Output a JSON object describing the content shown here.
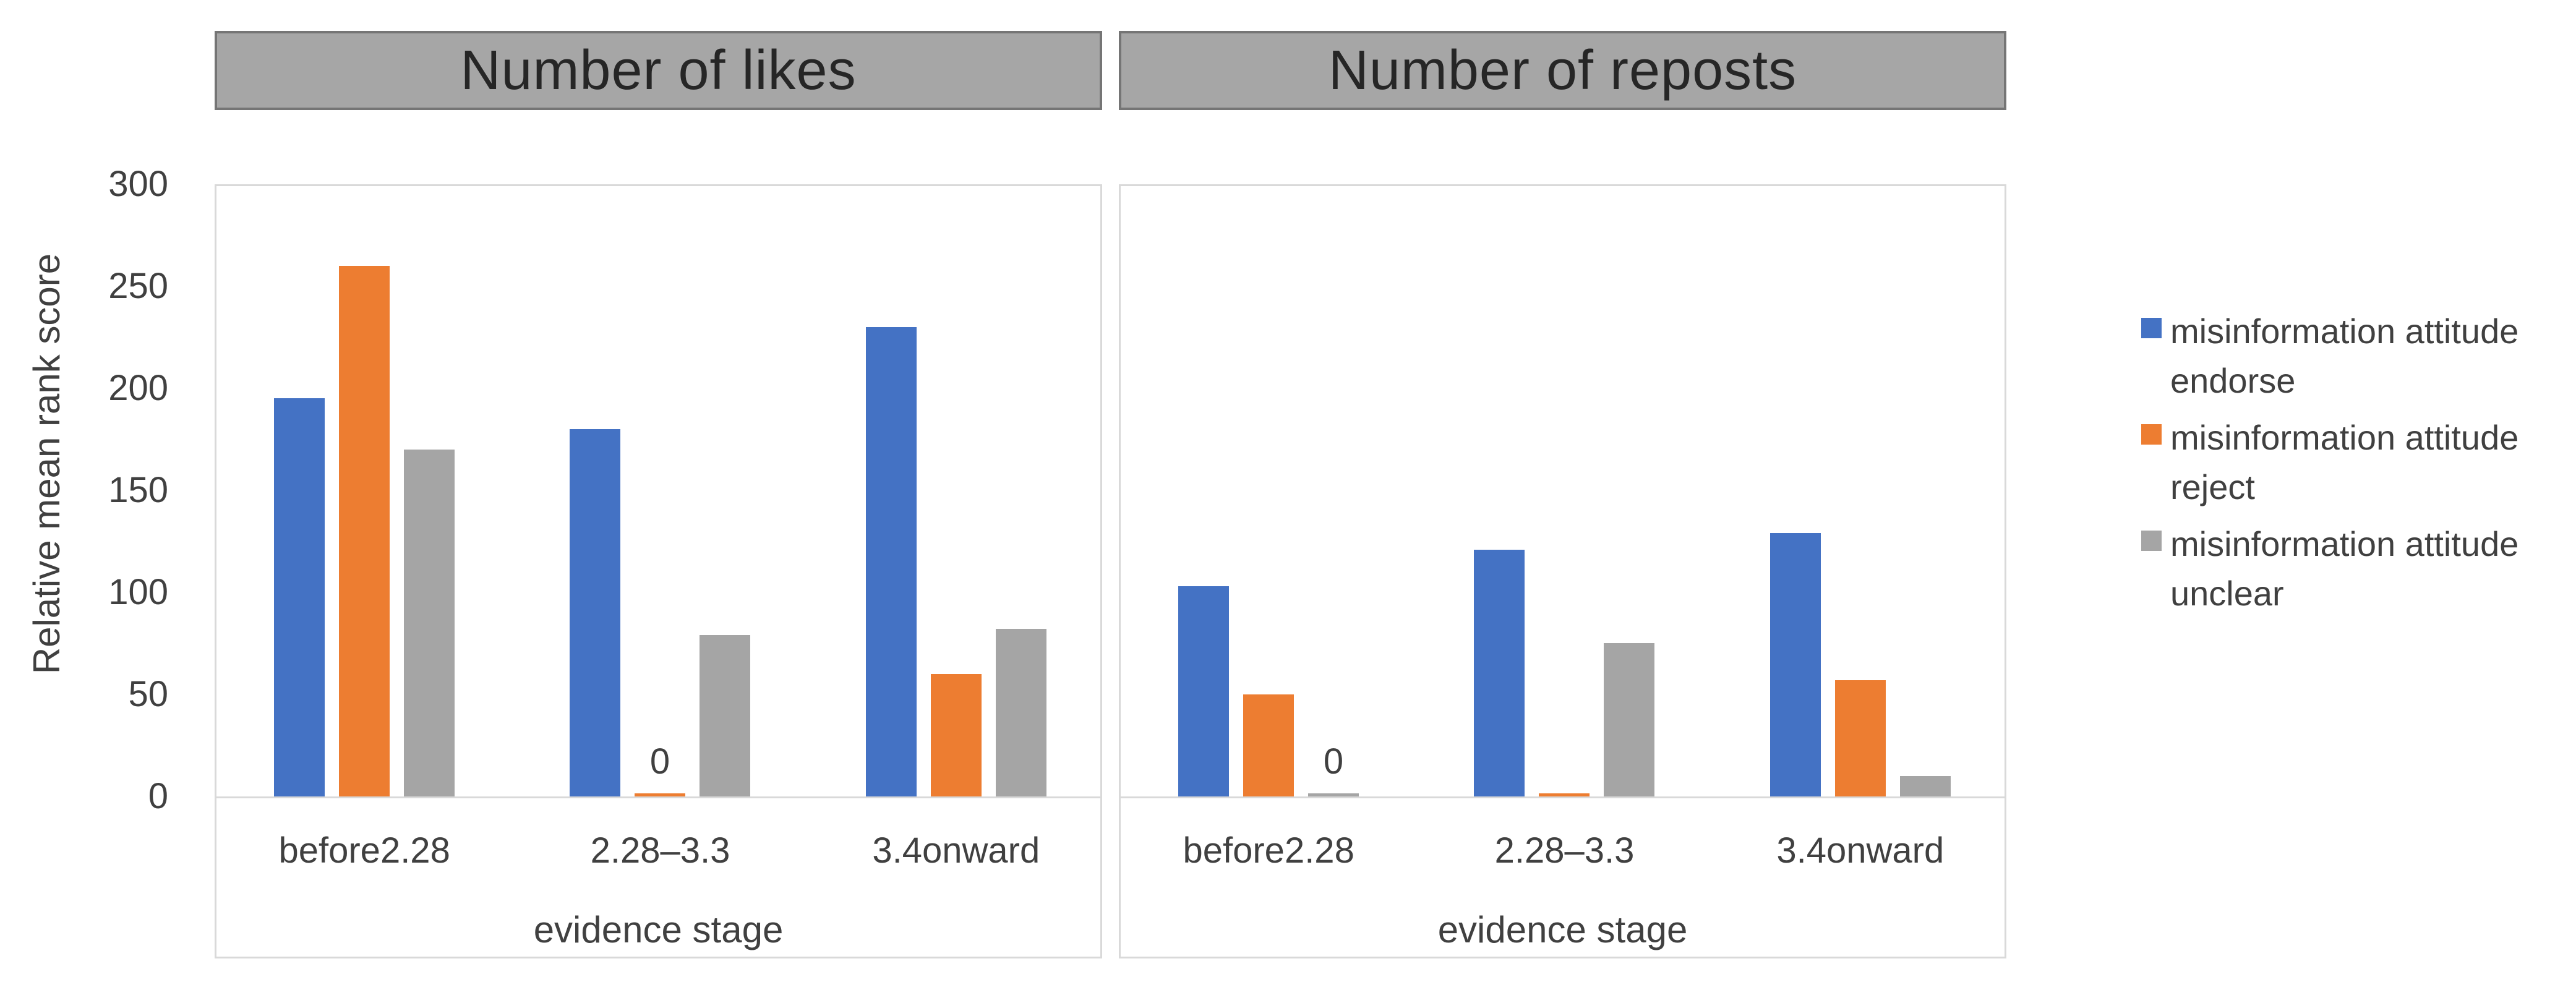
{
  "figure": {
    "background": "#ffffff",
    "frame_color": "#d9d9d9",
    "header_fill": "#a6a6a6",
    "header_border": "#757575",
    "header_text_color": "#262626",
    "text_color": "#404040"
  },
  "legend": {
    "position": "right",
    "items": [
      {
        "line1": "misinformation attitude",
        "line2": "endorse",
        "color": "#4472C4"
      },
      {
        "line1": "misinformation attitude",
        "line2": "reject",
        "color": "#ED7D31"
      },
      {
        "line1": "misinformation attitude",
        "line2": "unclear",
        "color": "#A5A5A5"
      }
    ]
  },
  "chart_data": [
    {
      "type": "bar",
      "title": "Number of likes",
      "categories": [
        "before2.28",
        "2.28–3.3",
        "3.4onward"
      ],
      "series": [
        {
          "name": "misinformation attitude endorse",
          "color": "#4472C4",
          "values": [
            195,
            180,
            230
          ]
        },
        {
          "name": "misinformation attitude reject",
          "color": "#ED7D31",
          "values": [
            260,
            0,
            60
          ],
          "data_labels": {
            "1": "0"
          }
        },
        {
          "name": "misinformation attitude unclear",
          "color": "#A5A5A5",
          "values": [
            170,
            79,
            82
          ]
        }
      ],
      "xlabel": "evidence stage",
      "ylabel": "Relative mean rank score",
      "ylim": [
        0,
        300
      ],
      "yticks": [
        0,
        50,
        100,
        150,
        200,
        250,
        300
      ],
      "grid": false,
      "legend_position": "right"
    },
    {
      "type": "bar",
      "title": "Number of reposts",
      "categories": [
        "before2.28",
        "2.28–3.3",
        "3.4onward"
      ],
      "series": [
        {
          "name": "misinformation attitude endorse",
          "color": "#4472C4",
          "values": [
            103,
            121,
            129
          ]
        },
        {
          "name": "misinformation attitude reject",
          "color": "#ED7D31",
          "values": [
            50,
            1,
            57
          ]
        },
        {
          "name": "misinformation attitude unclear",
          "color": "#A5A5A5",
          "values": [
            0,
            75,
            10
          ],
          "data_labels": {
            "0": "0"
          }
        }
      ],
      "xlabel": "evidence stage",
      "ylabel": "Relative mean rank score",
      "ylim": [
        0,
        300
      ],
      "yticks": [
        0,
        50,
        100,
        150,
        200,
        250,
        300
      ],
      "grid": false,
      "legend_position": "right"
    }
  ]
}
